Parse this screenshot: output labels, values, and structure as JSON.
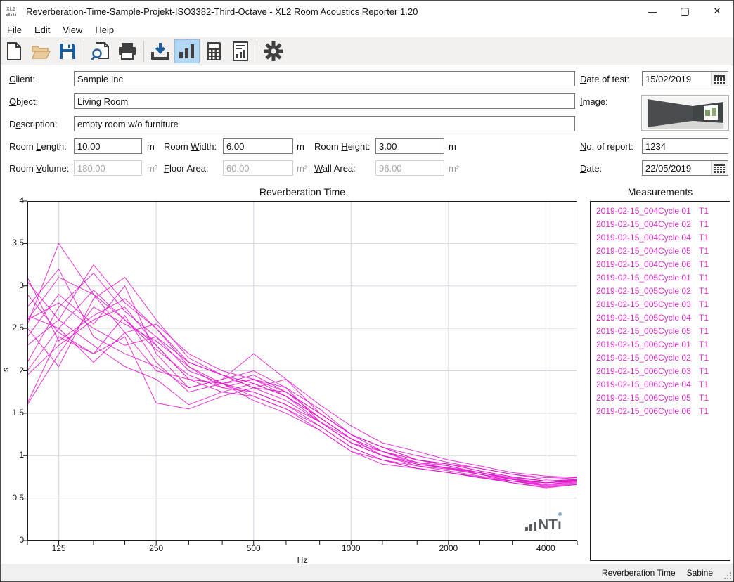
{
  "window": {
    "title": "Reverberation-Time-Sample-Projekt-ISO3382-Third-Octave - XL2 Room Acoustics Reporter 1.20",
    "app_icon_text": "XL2",
    "controls": {
      "minimize": "—",
      "maximize": "▢",
      "close": "✕"
    }
  },
  "menu": {
    "items": [
      {
        "label": "File",
        "mnemonic": "F"
      },
      {
        "label": "Edit",
        "mnemonic": "E"
      },
      {
        "label": "View",
        "mnemonic": "V"
      },
      {
        "label": "Help",
        "mnemonic": "H"
      }
    ]
  },
  "toolbar": {
    "buttons": [
      "new-document",
      "open-folder",
      "save",
      "print-preview",
      "print",
      "import-measurement",
      "chart-view",
      "calculator",
      "report-view",
      "settings"
    ],
    "active_button": "chart-view"
  },
  "fields": {
    "client": {
      "label": "Client:",
      "mnemonic": "C",
      "value": "Sample Inc"
    },
    "object": {
      "label": "Object:",
      "mnemonic": "O",
      "value": "Living Room"
    },
    "description": {
      "label": "Description:",
      "mnemonic": "e",
      "value": "empty room w/o furniture"
    },
    "room_length": {
      "label": "Room Length:",
      "mnemonic": "L",
      "value": "10.00",
      "unit": "m"
    },
    "room_width": {
      "label": "Room Width:",
      "mnemonic": "W",
      "value": "6.00",
      "unit": "m"
    },
    "room_height": {
      "label": "Room Height:",
      "mnemonic": "H",
      "value": "3.00",
      "unit": "m"
    },
    "room_volume": {
      "label": "Room Volume:",
      "mnemonic": "V",
      "value": "180.00",
      "unit": "m³",
      "disabled": true
    },
    "floor_area": {
      "label": "Floor Area:",
      "mnemonic": "F",
      "value": "60.00",
      "unit": "m²",
      "disabled": true
    },
    "wall_area": {
      "label": "Wall Area:",
      "mnemonic": "W",
      "value": "96.00",
      "unit": "m²",
      "disabled": true
    },
    "date_of_test": {
      "label": "Date of test:",
      "mnemonic": "D",
      "value": "15/02/2019"
    },
    "image": {
      "label": "Image:",
      "mnemonic": "I"
    },
    "no_of_report": {
      "label": "No. of report:",
      "mnemonic": "N",
      "value": "1234"
    },
    "date": {
      "label": "Date:",
      "mnemonic": "D",
      "value": "22/05/2019"
    }
  },
  "measurements": {
    "title": "Measurements",
    "items": [
      {
        "name": "2019-02-15_004Cycle 01",
        "type": "T1"
      },
      {
        "name": "2019-02-15_004Cycle 02",
        "type": "T1"
      },
      {
        "name": "2019-02-15_004Cycle 04",
        "type": "T1"
      },
      {
        "name": "2019-02-15_004Cycle 05",
        "type": "T1"
      },
      {
        "name": "2019-02-15_004Cycle 06",
        "type": "T1"
      },
      {
        "name": "2019-02-15_005Cycle 01",
        "type": "T1"
      },
      {
        "name": "2019-02-15_005Cycle 02",
        "type": "T1"
      },
      {
        "name": "2019-02-15_005Cycle 03",
        "type": "T1"
      },
      {
        "name": "2019-02-15_005Cycle 04",
        "type": "T1"
      },
      {
        "name": "2019-02-15_005Cycle 05",
        "type": "T1"
      },
      {
        "name": "2019-02-15_006Cycle 01",
        "type": "T1"
      },
      {
        "name": "2019-02-15_006Cycle 02",
        "type": "T1"
      },
      {
        "name": "2019-02-15_006Cycle 03",
        "type": "T1"
      },
      {
        "name": "2019-02-15_006Cycle 04",
        "type": "T1"
      },
      {
        "name": "2019-02-15_006Cycle 05",
        "type": "T1"
      },
      {
        "name": "2019-02-15_006Cycle 06",
        "type": "T1"
      }
    ]
  },
  "statusbar": {
    "mode": "Reverberation Time",
    "method": "Sabine"
  },
  "colors": {
    "measurement_text": "#d62fc8",
    "chart_line": "#e312cd",
    "grid": "#d6d6e2",
    "active_button_bg": "#b3d7f0",
    "save_blue": "#1d5d9b",
    "folder_tan": "#e8c globally"
  },
  "chart_data": {
    "type": "line",
    "title": "Reverberation Time",
    "xlabel": "Hz",
    "ylabel": "s",
    "x_scale": "log",
    "xlim": [
      100,
      5000
    ],
    "ylim": [
      0,
      4
    ],
    "grid": true,
    "legend": "none",
    "line_color": "#e312cd",
    "grid_color": "#d6d6e2",
    "x": [
      100,
      125,
      160,
      200,
      250,
      315,
      400,
      500,
      630,
      800,
      1000,
      1250,
      1600,
      2000,
      2500,
      3150,
      4000,
      5000
    ],
    "x_major_ticks": [
      125,
      250,
      500,
      1000,
      2000,
      4000
    ],
    "y_ticks": [
      0,
      0.5,
      1,
      1.5,
      2,
      2.5,
      3,
      3.5,
      4
    ],
    "series": [
      {
        "name": "2019-02-15_004Cycle 01",
        "values": [
          2.6,
          3.1,
          2.9,
          2.6,
          2.3,
          1.9,
          1.85,
          1.9,
          1.7,
          1.45,
          1.2,
          1.05,
          0.9,
          0.85,
          0.8,
          0.72,
          0.68,
          0.7
        ]
      },
      {
        "name": "2019-02-15_004Cycle 02",
        "values": [
          3.05,
          2.6,
          3.25,
          2.8,
          2.5,
          2.1,
          1.95,
          1.8,
          1.75,
          1.5,
          1.25,
          1.1,
          0.95,
          0.9,
          0.82,
          0.75,
          0.7,
          0.72
        ]
      },
      {
        "name": "2019-02-15_004Cycle 04",
        "values": [
          2.4,
          2.9,
          2.55,
          3.0,
          2.2,
          1.8,
          1.9,
          2.0,
          1.8,
          1.4,
          1.15,
          1.0,
          0.92,
          0.88,
          0.78,
          0.7,
          0.65,
          0.68
        ]
      },
      {
        "name": "2019-02-15_004Cycle 05",
        "values": [
          1.6,
          2.2,
          2.75,
          2.55,
          2.35,
          2.05,
          1.8,
          1.75,
          1.6,
          1.35,
          1.1,
          0.95,
          0.88,
          0.82,
          0.76,
          0.7,
          0.66,
          0.7
        ]
      },
      {
        "name": "2019-02-15_004Cycle 06",
        "values": [
          2.55,
          3.5,
          2.9,
          2.45,
          2.0,
          1.9,
          1.85,
          1.65,
          1.5,
          1.3,
          1.05,
          0.9,
          0.85,
          0.8,
          0.74,
          0.7,
          0.68,
          0.71
        ]
      },
      {
        "name": "2019-02-15_005Cycle 01",
        "values": [
          2.9,
          2.45,
          2.2,
          2.65,
          2.1,
          1.75,
          1.85,
          1.95,
          1.75,
          1.45,
          1.2,
          1.0,
          0.9,
          0.86,
          0.8,
          0.72,
          0.66,
          0.69
        ]
      },
      {
        "name": "2019-02-15_005Cycle 02",
        "values": [
          2.1,
          2.75,
          3.15,
          2.7,
          2.4,
          2.1,
          1.95,
          1.85,
          1.7,
          1.4,
          1.15,
          1.05,
          0.95,
          0.9,
          0.85,
          0.78,
          0.72,
          0.74
        ]
      },
      {
        "name": "2019-02-15_005Cycle 03",
        "values": [
          2.65,
          2.5,
          2.1,
          2.45,
          2.55,
          2.2,
          2.0,
          1.9,
          1.8,
          1.55,
          1.25,
          1.1,
          0.95,
          0.88,
          0.8,
          0.74,
          0.7,
          0.71
        ]
      },
      {
        "name": "2019-02-15_005Cycle 04",
        "values": [
          1.95,
          2.3,
          2.6,
          2.75,
          2.3,
          1.9,
          1.75,
          1.7,
          1.55,
          1.35,
          1.1,
          0.95,
          0.85,
          0.8,
          0.75,
          0.68,
          0.62,
          0.66
        ]
      },
      {
        "name": "2019-02-15_005Cycle 05",
        "values": [
          2.75,
          3.2,
          2.4,
          2.2,
          2.05,
          1.8,
          1.9,
          2.2,
          1.9,
          1.5,
          1.25,
          1.1,
          1.0,
          0.92,
          0.85,
          0.78,
          0.74,
          0.75
        ]
      },
      {
        "name": "2019-02-15_006Cycle 01",
        "values": [
          2.5,
          2.05,
          2.85,
          3.1,
          2.6,
          2.15,
          1.95,
          1.8,
          1.65,
          1.4,
          1.2,
          1.05,
          0.92,
          0.85,
          0.78,
          0.72,
          0.68,
          0.7
        ]
      },
      {
        "name": "2019-02-15_006Cycle 02",
        "values": [
          2.3,
          2.6,
          2.3,
          2.05,
          1.9,
          1.6,
          1.75,
          1.85,
          1.7,
          1.45,
          1.2,
          1.0,
          0.88,
          0.84,
          0.78,
          0.7,
          0.64,
          0.67
        ]
      },
      {
        "name": "2019-02-15_006Cycle 03",
        "values": [
          3.1,
          2.35,
          2.65,
          2.85,
          2.5,
          2.05,
          1.85,
          1.75,
          1.6,
          1.4,
          1.15,
          1.0,
          0.9,
          0.85,
          0.8,
          0.73,
          0.68,
          0.71
        ]
      },
      {
        "name": "2019-02-15_006Cycle 04",
        "values": [
          2.0,
          2.5,
          2.95,
          2.6,
          2.25,
          1.95,
          1.8,
          1.9,
          1.75,
          1.5,
          1.25,
          1.05,
          0.95,
          0.9,
          0.82,
          0.75,
          0.7,
          0.72
        ]
      },
      {
        "name": "2019-02-15_006Cycle 05",
        "values": [
          2.6,
          2.8,
          2.5,
          2.3,
          2.4,
          2.0,
          1.85,
          1.7,
          1.55,
          1.3,
          1.05,
          0.95,
          0.85,
          0.8,
          0.74,
          0.68,
          0.63,
          0.66
        ]
      },
      {
        "name": "2019-02-15_006Cycle 06",
        "values": [
          1.62,
          2.4,
          2.2,
          2.4,
          1.62,
          1.55,
          1.7,
          1.8,
          1.9,
          1.6,
          1.35,
          1.15,
          1.05,
          0.95,
          0.88,
          0.8,
          0.76,
          0.74
        ]
      }
    ]
  }
}
